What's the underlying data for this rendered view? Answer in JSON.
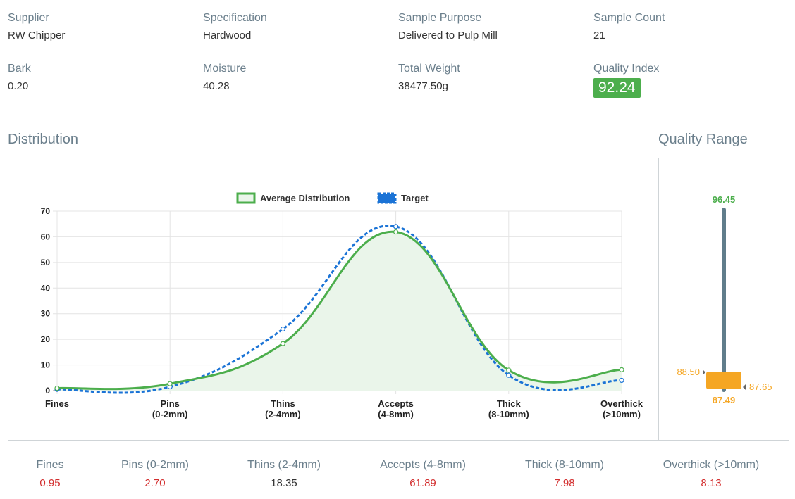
{
  "info": {
    "supplier": {
      "label": "Supplier",
      "value": "RW Chipper"
    },
    "specification": {
      "label": "Specification",
      "value": "Hardwood"
    },
    "sample_purpose": {
      "label": "Sample Purpose",
      "value": "Delivered to Pulp Mill"
    },
    "sample_count": {
      "label": "Sample Count",
      "value": "21"
    },
    "bark": {
      "label": "Bark",
      "value": "0.20"
    },
    "moisture": {
      "label": "Moisture",
      "value": "40.28"
    },
    "total_weight": {
      "label": "Total Weight",
      "value": "38477.50g"
    },
    "quality_index": {
      "label": "Quality Index",
      "value": "92.24"
    }
  },
  "distribution_title": "Distribution",
  "quality_range_title": "Quality Range",
  "chart_data": {
    "type": "line",
    "categories": [
      [
        "Fines"
      ],
      [
        "Pins",
        "(0-2mm)"
      ],
      [
        "Thins",
        "(2-4mm)"
      ],
      [
        "Accepts",
        "(4-8mm)"
      ],
      [
        "Thick",
        "(8-10mm)"
      ],
      [
        "Overthick",
        "(>10mm)"
      ]
    ],
    "ylim": [
      0,
      70
    ],
    "yticks": [
      0,
      10,
      20,
      30,
      40,
      50,
      60,
      70
    ],
    "grid": true,
    "legend_position": "top",
    "series": [
      {
        "name": "Average Distribution",
        "values": [
          0.95,
          2.7,
          18.35,
          61.89,
          7.98,
          8.13
        ],
        "color": "#4cae4c",
        "style": "solid",
        "fill": "#eaf5ea"
      },
      {
        "name": "Target",
        "values": [
          0.5,
          1.5,
          24,
          64,
          6,
          4
        ],
        "color": "#1a73d6",
        "style": "dashed"
      }
    ]
  },
  "quality_range": {
    "max": "96.45",
    "min": "87.49",
    "left_marker": "88.50",
    "right_marker": "87.65",
    "max_color": "#4cae4c",
    "low_color": "#f5a623"
  },
  "bottom": [
    {
      "label": "Fines",
      "value": "0.95",
      "color": "#d32f2f"
    },
    {
      "label": "Pins (0-2mm)",
      "value": "2.70",
      "color": "#d32f2f"
    },
    {
      "label": "Thins (2-4mm)",
      "value": "18.35",
      "color": "#333333"
    },
    {
      "label": "Accepts (4-8mm)",
      "value": "61.89",
      "color": "#d32f2f"
    },
    {
      "label": "Thick (8-10mm)",
      "value": "7.98",
      "color": "#d32f2f"
    },
    {
      "label": "Overthick (>10mm)",
      "value": "8.13",
      "color": "#d32f2f"
    }
  ]
}
